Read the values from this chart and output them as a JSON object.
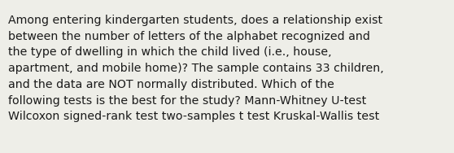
{
  "text": "Among entering kindergarten students, does a relationship exist\nbetween the number of letters of the alphabet recognized and\nthe type of dwelling in which the child lived (i.e., house,\napartment, and mobile home)? The sample contains 33 children,\nand the data are NOT normally distributed. Which of the\nfollowing tests is the best for the study? Mann-Whitney U-test\nWilcoxon signed-rank test two-samples t test Kruskal-Wallis test",
  "background_color": "#eeeee8",
  "text_color": "#1a1a1a",
  "font_size": 10.2,
  "fig_width": 5.58,
  "fig_height": 1.88,
  "dpi": 100
}
